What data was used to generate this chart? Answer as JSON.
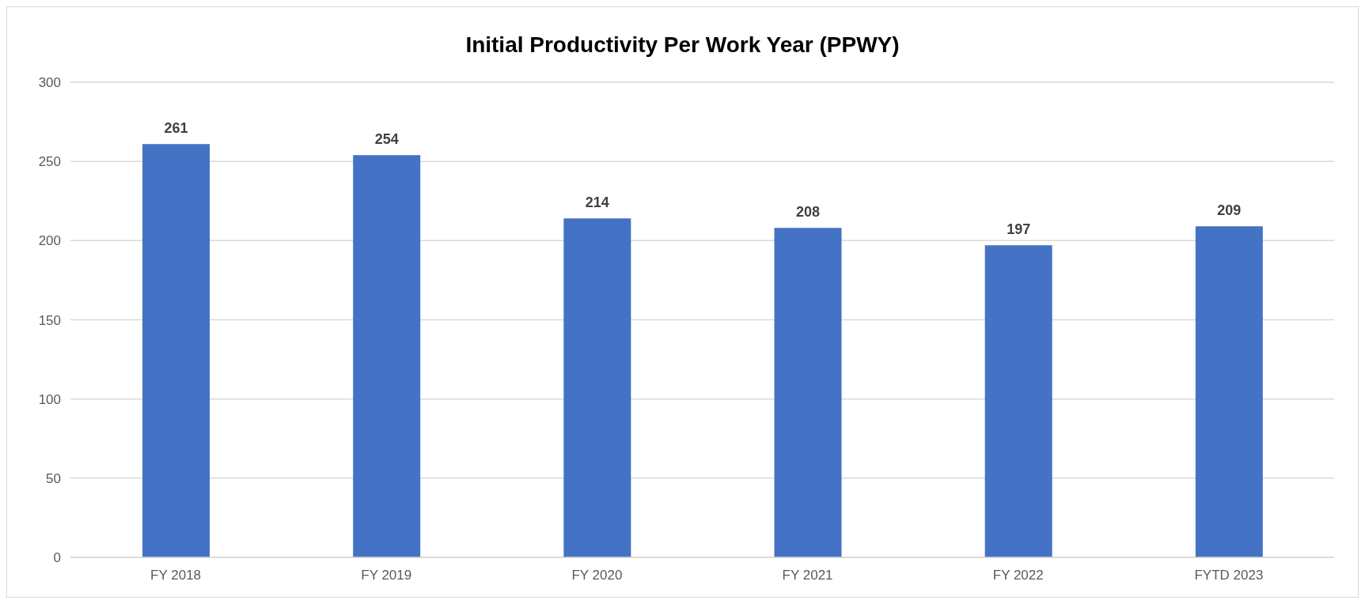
{
  "chart_data": {
    "type": "bar",
    "title": "Initial Productivity Per Work Year (PPWY)",
    "categories": [
      "FY 2018",
      "FY 2019",
      "FY 2020",
      "FY 2021",
      "FY 2022",
      "FYTD 2023"
    ],
    "values": [
      261,
      254,
      214,
      208,
      197,
      209
    ],
    "color": "#4472c4",
    "ylim": [
      0,
      300
    ],
    "yticks": [
      0,
      50,
      100,
      150,
      200,
      250,
      300
    ],
    "grid": "y",
    "data_labels": true
  }
}
